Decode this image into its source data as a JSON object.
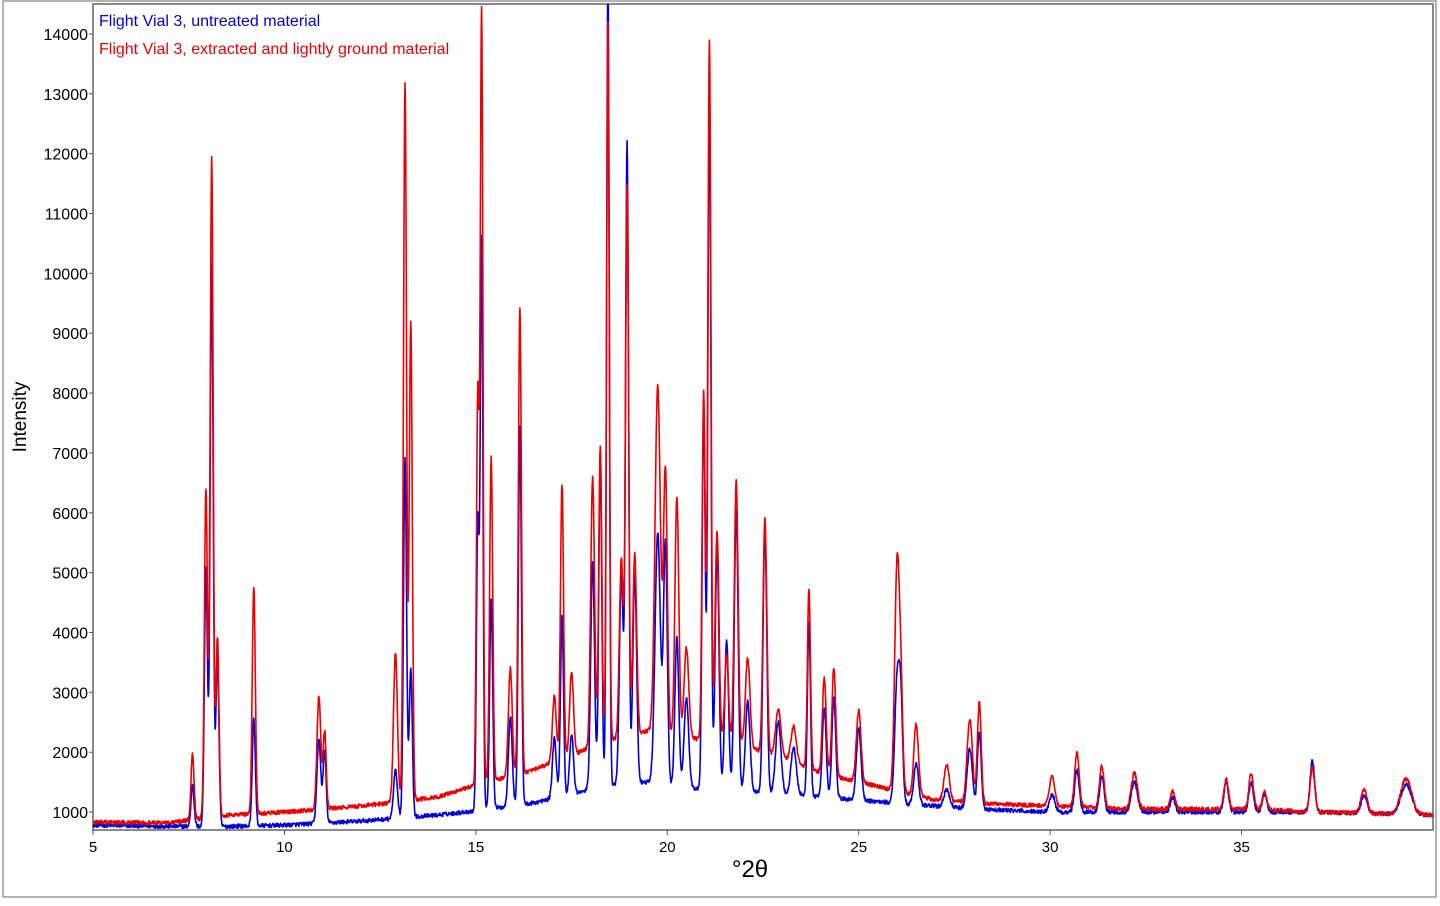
{
  "chart_data": {
    "type": "line",
    "title": "",
    "xlabel": "°2θ",
    "ylabel": "Intensity",
    "xlim": [
      5,
      40
    ],
    "ylim": [
      700,
      14500
    ],
    "x_ticks": [
      5,
      10,
      15,
      20,
      25,
      30,
      35
    ],
    "y_ticks": [
      1000,
      2000,
      3000,
      4000,
      5000,
      6000,
      7000,
      8000,
      9000,
      10000,
      11000,
      12000,
      13000,
      14000
    ],
    "x_tick_labels": [
      "5",
      "10",
      "15",
      "20",
      "25",
      "30",
      "35"
    ],
    "y_tick_labels": [
      "1000",
      "2000",
      "3000",
      "4000",
      "5000",
      "6000",
      "7000",
      "8000",
      "9000",
      "10000",
      "11000",
      "12000",
      "13000",
      "14000"
    ],
    "legend_position": "top-left",
    "grid": false,
    "series": [
      {
        "name": "Flight Vial 3, untreated material",
        "color": "#0000dd",
        "baseline": [
          [
            5,
            780
          ],
          [
            7,
            760
          ],
          [
            8.5,
            760
          ],
          [
            10,
            780
          ],
          [
            12,
            850
          ],
          [
            14,
            950
          ],
          [
            15,
            1020
          ],
          [
            16.5,
            1150
          ],
          [
            17.5,
            1300
          ],
          [
            18.5,
            1450
          ],
          [
            19.5,
            1500
          ],
          [
            20.5,
            1400
          ],
          [
            22,
            1350
          ],
          [
            23,
            1300
          ],
          [
            24,
            1250
          ],
          [
            25,
            1200
          ],
          [
            26,
            1150
          ],
          [
            27,
            1100
          ],
          [
            28,
            1050
          ],
          [
            30,
            1000
          ],
          [
            32,
            1000
          ],
          [
            35,
            1000
          ],
          [
            37,
            1000
          ],
          [
            40,
            950
          ]
        ],
        "peaks": [
          [
            7.6,
            700,
            0.04
          ],
          [
            7.95,
            4300,
            0.04
          ],
          [
            8.1,
            9400,
            0.04
          ],
          [
            8.25,
            2800,
            0.04
          ],
          [
            9.2,
            1800,
            0.04
          ],
          [
            10.9,
            1400,
            0.05
          ],
          [
            11.05,
            1200,
            0.04
          ],
          [
            12.9,
            800,
            0.05
          ],
          [
            13.15,
            6000,
            0.04
          ],
          [
            13.3,
            2500,
            0.04
          ],
          [
            15.05,
            4800,
            0.035
          ],
          [
            15.15,
            9500,
            0.035
          ],
          [
            15.4,
            3500,
            0.04
          ],
          [
            15.9,
            1500,
            0.05
          ],
          [
            16.15,
            6300,
            0.04
          ],
          [
            17.05,
            1000,
            0.05
          ],
          [
            17.25,
            3000,
            0.04
          ],
          [
            17.5,
            1000,
            0.05
          ],
          [
            18.05,
            3800,
            0.05
          ],
          [
            18.25,
            5500,
            0.04
          ],
          [
            18.45,
            13500,
            0.035
          ],
          [
            18.8,
            3500,
            0.05
          ],
          [
            18.95,
            10700,
            0.04
          ],
          [
            19.15,
            3500,
            0.05
          ],
          [
            19.75,
            4200,
            0.07
          ],
          [
            19.95,
            4000,
            0.05
          ],
          [
            20.25,
            2500,
            0.05
          ],
          [
            20.5,
            1500,
            0.06
          ],
          [
            20.95,
            6400,
            0.04
          ],
          [
            21.1,
            11500,
            0.04
          ],
          [
            21.3,
            4000,
            0.05
          ],
          [
            21.55,
            2500,
            0.05
          ],
          [
            21.8,
            4700,
            0.05
          ],
          [
            22.1,
            1500,
            0.06
          ],
          [
            22.55,
            4400,
            0.05
          ],
          [
            22.9,
            1200,
            0.07
          ],
          [
            23.3,
            800,
            0.07
          ],
          [
            23.7,
            2900,
            0.04
          ],
          [
            24.1,
            1500,
            0.05
          ],
          [
            24.35,
            1700,
            0.05
          ],
          [
            25.0,
            1200,
            0.06
          ],
          [
            26.0,
            2000,
            0.06
          ],
          [
            26.1,
            1600,
            0.05
          ],
          [
            26.5,
            700,
            0.06
          ],
          [
            27.3,
            300,
            0.07
          ],
          [
            27.9,
            1000,
            0.07
          ],
          [
            28.15,
            1300,
            0.05
          ],
          [
            30.05,
            300,
            0.07
          ],
          [
            30.7,
            700,
            0.06
          ],
          [
            31.35,
            600,
            0.06
          ],
          [
            32.2,
            500,
            0.08
          ],
          [
            33.2,
            250,
            0.06
          ],
          [
            34.6,
            500,
            0.06
          ],
          [
            35.25,
            500,
            0.06
          ],
          [
            35.6,
            300,
            0.06
          ],
          [
            36.85,
            850,
            0.06
          ],
          [
            38.2,
            300,
            0.08
          ],
          [
            39.3,
            500,
            0.14
          ]
        ]
      },
      {
        "name": "Flight Vial 3, extracted and lightly ground material",
        "color": "#ee0000",
        "baseline": [
          [
            5,
            830
          ],
          [
            7,
            820
          ],
          [
            8.5,
            950
          ],
          [
            10,
            1000
          ],
          [
            12,
            1100
          ],
          [
            14,
            1250
          ],
          [
            15,
            1450
          ],
          [
            16.5,
            1700
          ],
          [
            17.5,
            1950
          ],
          [
            18.5,
            2200
          ],
          [
            19.5,
            2350
          ],
          [
            20.5,
            2250
          ],
          [
            22,
            2100
          ],
          [
            23,
            1900
          ],
          [
            24,
            1650
          ],
          [
            25,
            1500
          ],
          [
            26,
            1350
          ],
          [
            27,
            1200
          ],
          [
            28,
            1150
          ],
          [
            30,
            1100
          ],
          [
            32,
            1050
          ],
          [
            35,
            1050
          ],
          [
            37,
            1000
          ],
          [
            40,
            950
          ]
        ],
        "peaks": [
          [
            7.6,
            1100,
            0.04
          ],
          [
            7.95,
            5500,
            0.04
          ],
          [
            8.1,
            11000,
            0.04
          ],
          [
            8.25,
            3000,
            0.04
          ],
          [
            9.2,
            3800,
            0.04
          ],
          [
            10.9,
            1900,
            0.05
          ],
          [
            11.05,
            1300,
            0.04
          ],
          [
            12.9,
            2500,
            0.05
          ],
          [
            13.15,
            12000,
            0.04
          ],
          [
            13.3,
            8000,
            0.04
          ],
          [
            15.05,
            6500,
            0.035
          ],
          [
            15.15,
            12900,
            0.035
          ],
          [
            15.4,
            5400,
            0.04
          ],
          [
            15.9,
            1800,
            0.05
          ],
          [
            16.15,
            7800,
            0.04
          ],
          [
            17.05,
            1100,
            0.05
          ],
          [
            17.25,
            4600,
            0.04
          ],
          [
            17.5,
            1400,
            0.05
          ],
          [
            18.05,
            4500,
            0.05
          ],
          [
            18.25,
            5000,
            0.04
          ],
          [
            18.45,
            12000,
            0.035
          ],
          [
            18.8,
            3000,
            0.05
          ],
          [
            18.95,
            9200,
            0.04
          ],
          [
            19.15,
            3000,
            0.05
          ],
          [
            19.75,
            5800,
            0.07
          ],
          [
            19.95,
            4400,
            0.05
          ],
          [
            20.25,
            4000,
            0.05
          ],
          [
            20.5,
            1500,
            0.06
          ],
          [
            20.95,
            5800,
            0.04
          ],
          [
            21.1,
            11700,
            0.04
          ],
          [
            21.3,
            3500,
            0.05
          ],
          [
            21.55,
            1500,
            0.05
          ],
          [
            21.8,
            4400,
            0.05
          ],
          [
            22.1,
            1500,
            0.06
          ],
          [
            22.55,
            3900,
            0.05
          ],
          [
            22.9,
            800,
            0.07
          ],
          [
            23.3,
            600,
            0.07
          ],
          [
            23.7,
            3000,
            0.04
          ],
          [
            24.1,
            1600,
            0.05
          ],
          [
            24.35,
            1800,
            0.05
          ],
          [
            25.0,
            1200,
            0.06
          ],
          [
            26.0,
            3700,
            0.06
          ],
          [
            26.1,
            1600,
            0.05
          ],
          [
            26.5,
            1200,
            0.06
          ],
          [
            27.3,
            600,
            0.07
          ],
          [
            27.9,
            1400,
            0.07
          ],
          [
            28.15,
            1700,
            0.05
          ],
          [
            30.05,
            500,
            0.07
          ],
          [
            30.7,
            900,
            0.06
          ],
          [
            31.35,
            700,
            0.06
          ],
          [
            32.2,
            600,
            0.08
          ],
          [
            33.2,
            300,
            0.06
          ],
          [
            34.6,
            500,
            0.06
          ],
          [
            35.25,
            600,
            0.06
          ],
          [
            35.6,
            300,
            0.06
          ],
          [
            36.85,
            750,
            0.06
          ],
          [
            38.2,
            400,
            0.08
          ],
          [
            39.3,
            600,
            0.14
          ]
        ]
      }
    ]
  }
}
